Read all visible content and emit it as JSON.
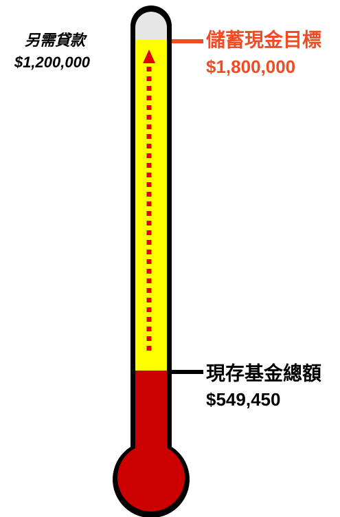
{
  "loan": {
    "label": "另需貸款",
    "amount": "$1,200,000"
  },
  "goal": {
    "label": "儲蓄現金目標",
    "amount": "$1,800,000"
  },
  "current": {
    "label": "現存基金總額",
    "amount": "$549,450"
  }
}
